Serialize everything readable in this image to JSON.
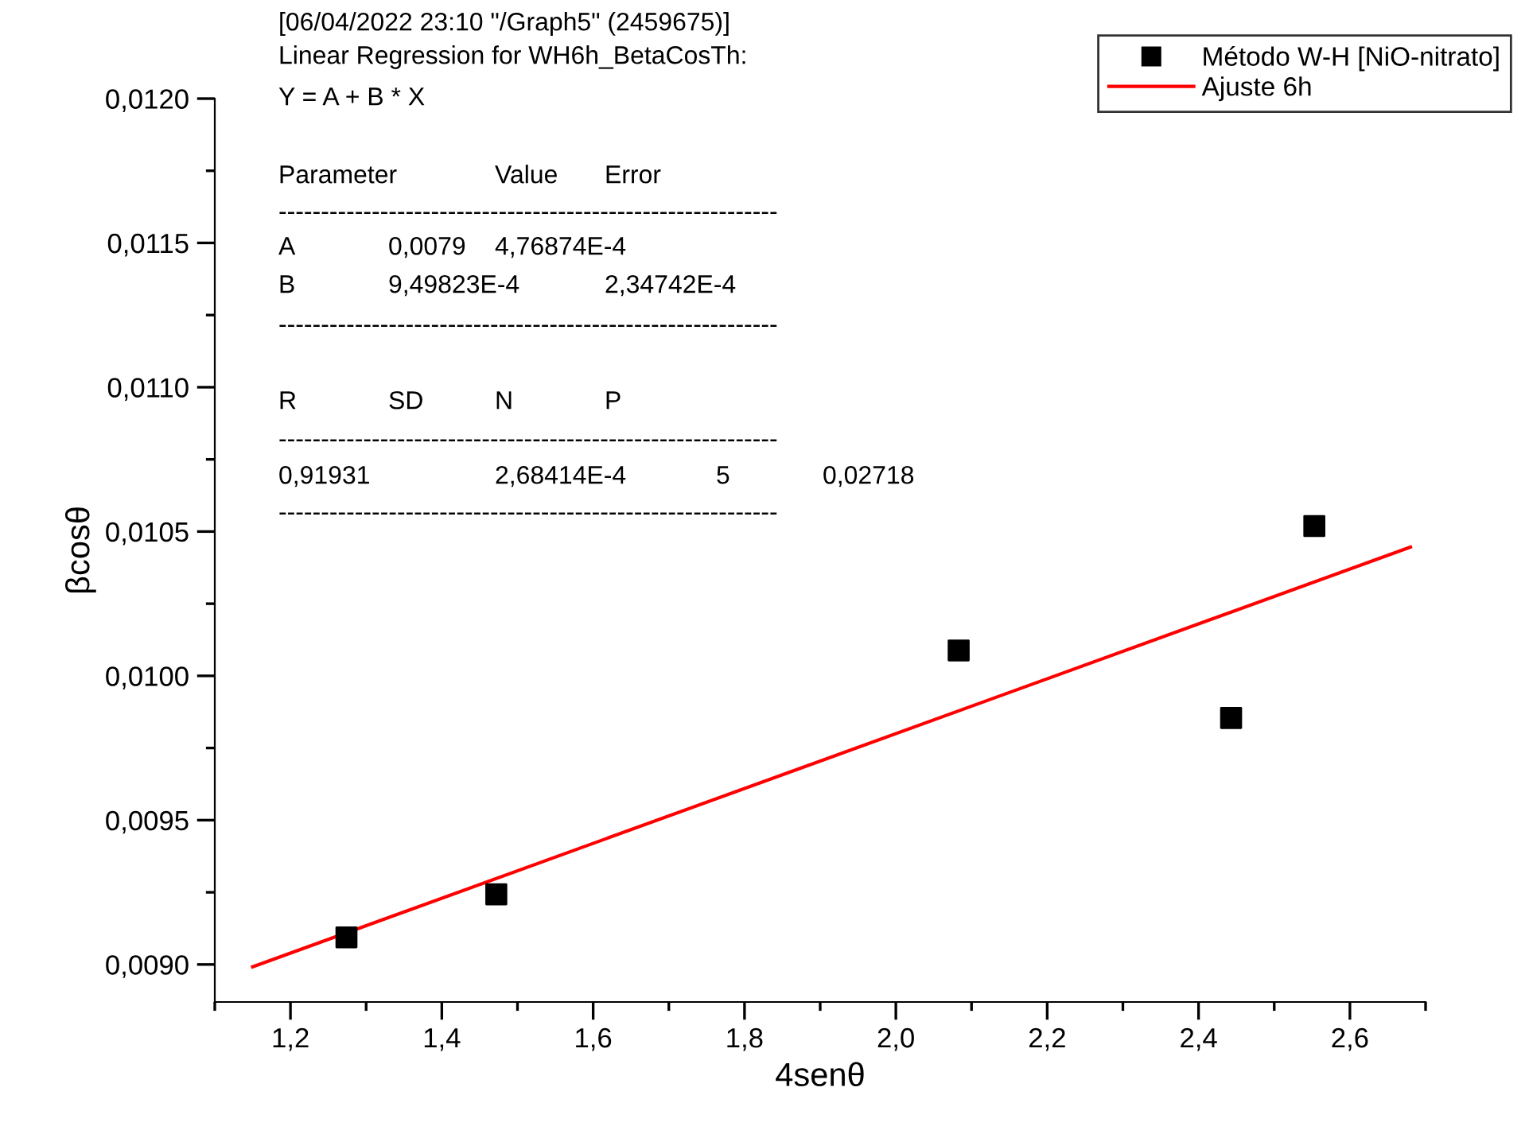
{
  "chart_data": {
    "type": "scatter",
    "xlabel": "4senθ",
    "ylabel": "βcosθ",
    "xlim": [
      1.1,
      2.7
    ],
    "ylim": [
      0.00887,
      0.012
    ],
    "xticks": [
      {
        "value": 1.2,
        "label": "1,2"
      },
      {
        "value": 1.4,
        "label": "1,4"
      },
      {
        "value": 1.6,
        "label": "1,6"
      },
      {
        "value": 1.8,
        "label": "1,8"
      },
      {
        "value": 2.0,
        "label": "2,0"
      },
      {
        "value": 2.2,
        "label": "2,2"
      },
      {
        "value": 2.4,
        "label": "2,4"
      },
      {
        "value": 2.6,
        "label": "2,6"
      }
    ],
    "yticks": [
      {
        "value": 0.009,
        "label": "0,0090"
      },
      {
        "value": 0.0095,
        "label": "0,0095"
      },
      {
        "value": 0.01,
        "label": "0,0100"
      },
      {
        "value": 0.0105,
        "label": "0,0105"
      },
      {
        "value": 0.011,
        "label": "0,0110"
      },
      {
        "value": 0.0115,
        "label": "0,0115"
      },
      {
        "value": 0.012,
        "label": "0,0120"
      }
    ],
    "grid": false,
    "legend": "top right",
    "series": [
      {
        "name": "Método W-H [NiO-nitrato]",
        "marker": "square",
        "color": "#000000",
        "x": [
          1.274,
          1.472,
          2.083,
          2.443,
          2.553
        ],
        "values": [
          0.009094,
          0.009243,
          0.010088,
          0.009854,
          0.010519
        ]
      },
      {
        "name": "Ajuste 6h",
        "type": "line",
        "marker": "none",
        "line_style": "solid",
        "color": "#ff0000",
        "x": [
          1.15,
          2.68
        ],
        "values": [
          0.008992,
          0.010446
        ]
      }
    ],
    "annotations": [
      "[06/04/2022 23:10 \"/Graph5\" (2459675)]",
      "Linear Regression for WH6h_BetaCosTh:",
      "Y = A + B * X",
      "Parameter",
      "Value",
      "Error",
      "-----------------------------------------------------------",
      "A",
      "0,0079",
      "4,76874E-4",
      "B",
      "9,49823E-4",
      "2,34742E-4",
      "-----------------------------------------------------------",
      "R",
      "SD",
      "N",
      "P",
      "-----------------------------------------------------------",
      "0,91931",
      "2,68414E-4",
      "5",
      "0,02718",
      "-----------------------------------------------------------"
    ]
  }
}
